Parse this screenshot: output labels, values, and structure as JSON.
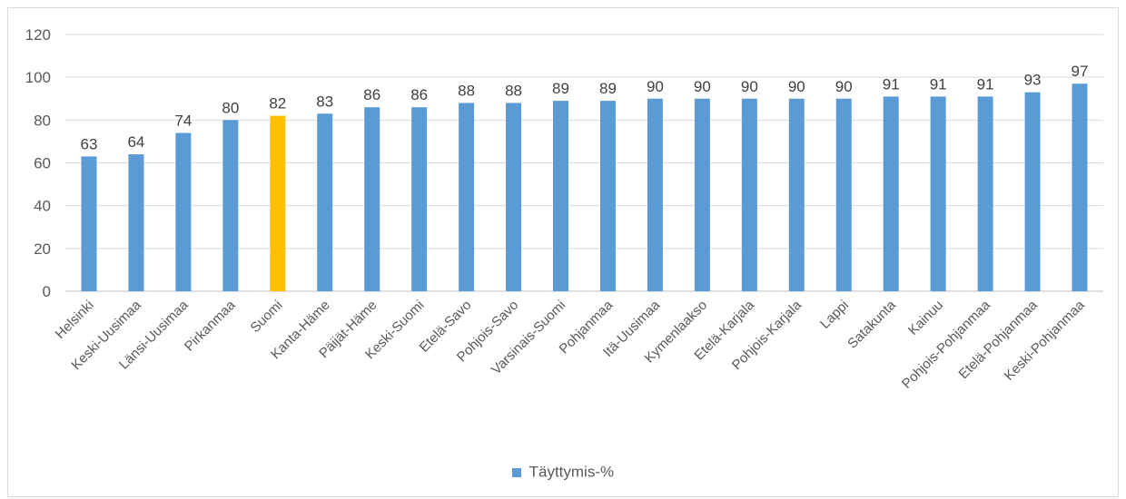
{
  "chart_data": {
    "type": "bar",
    "categories": [
      "Helsinki",
      "Keski-Uusimaa",
      "Länsi-Uusimaa",
      "Pirkanmaa",
      "Suomi",
      "Kanta-Häme",
      "Päijät-Häme",
      "Keski-Suomi",
      "Etelä-Savo",
      "Pohjois-Savo",
      "Varsinais-Suomi",
      "Pohjanmaa",
      "Itä-Uusimaa",
      "Kymenlaakso",
      "Etelä-Karjala",
      "Pohjois-Karjala",
      "Lappi",
      "Satakunta",
      "Kainuu",
      "Pohjois-Pohjanmaa",
      "Etelä-Pohjanmaa",
      "Keski-Pohjanmaa"
    ],
    "series": [
      {
        "name": "Täyttymis-%",
        "values": [
          63,
          64,
          74,
          80,
          82,
          83,
          86,
          86,
          88,
          88,
          89,
          89,
          90,
          90,
          90,
          90,
          90,
          91,
          91,
          91,
          93,
          97
        ]
      }
    ],
    "highlight_category": "Suomi",
    "ylim": [
      0,
      120
    ],
    "yticks": [
      0,
      20,
      40,
      60,
      80,
      100,
      120
    ],
    "grid": true,
    "legend_position": "bottom",
    "colors": {
      "bar": "#5b9bd5",
      "highlight": "#ffc000",
      "grid": "#d9d9d9"
    }
  },
  "legend": {
    "label": "Täyttymis-%"
  }
}
